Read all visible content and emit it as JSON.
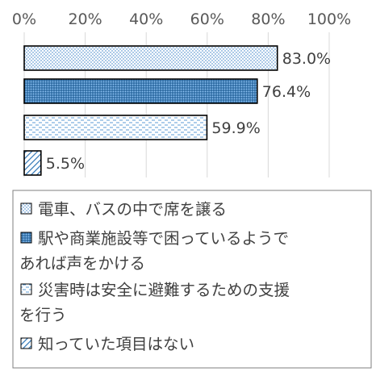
{
  "chart_data": {
    "type": "bar",
    "orientation": "horizontal",
    "xlim": [
      0,
      100
    ],
    "ticks": [
      "0%",
      "20%",
      "40%",
      "60%",
      "80%",
      "100%"
    ],
    "tick_values": [
      0,
      20,
      40,
      60,
      80,
      100
    ],
    "grid": true,
    "legend_position": "bottom",
    "series": [
      {
        "name": "電車、バスの中で席を譲る",
        "value": 83.0,
        "label": "83.0%",
        "fill": "dots-light",
        "color": "#9dc3e6",
        "legend_lines": [
          "電車、バスの中で席を譲る"
        ]
      },
      {
        "name": "駅や商業施設等で困っているようであれば声をかける",
        "value": 76.4,
        "label": "76.4%",
        "fill": "dots-dense",
        "color": "#2e75b6",
        "legend_lines": [
          "駅や商業施設等で困っているようで",
          "あれば声をかける"
        ]
      },
      {
        "name": "災害時は安全に避難するための支援を行う",
        "value": 59.9,
        "label": "59.9%",
        "fill": "dashes-horizontal",
        "color": "#5b9bd5",
        "legend_lines": [
          "災害時は安全に避難するための支援",
          "を行う"
        ]
      },
      {
        "name": "知っていた項目はない",
        "value": 5.5,
        "label": "5.5%",
        "fill": "diagonal-stripes",
        "color": "#2e75b6",
        "legend_lines": [
          "知っていた項目はない"
        ]
      }
    ]
  }
}
